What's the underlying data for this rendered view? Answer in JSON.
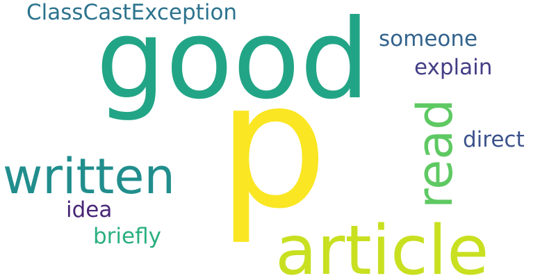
{
  "words": [
    {
      "text": "good",
      "color": "#22a586",
      "orientation": "horizontal"
    },
    {
      "text": "p",
      "color": "#fae622",
      "orientation": "horizontal"
    },
    {
      "text": "article",
      "color": "#c8e020",
      "orientation": "horizontal"
    },
    {
      "text": "written",
      "color": "#218e8d",
      "orientation": "horizontal"
    },
    {
      "text": "read",
      "color": "#5ec962",
      "orientation": "vertical"
    },
    {
      "text": "ClassCastException",
      "color": "#2c738e",
      "orientation": "horizontal"
    },
    {
      "text": "someone",
      "color": "#33638d",
      "orientation": "horizontal"
    },
    {
      "text": "explain",
      "color": "#433e85",
      "orientation": "horizontal"
    },
    {
      "text": "direct",
      "color": "#3b528b",
      "orientation": "horizontal"
    },
    {
      "text": "idea",
      "color": "#482677",
      "orientation": "horizontal"
    },
    {
      "text": "briefly",
      "color": "#29af7f",
      "orientation": "horizontal"
    }
  ]
}
